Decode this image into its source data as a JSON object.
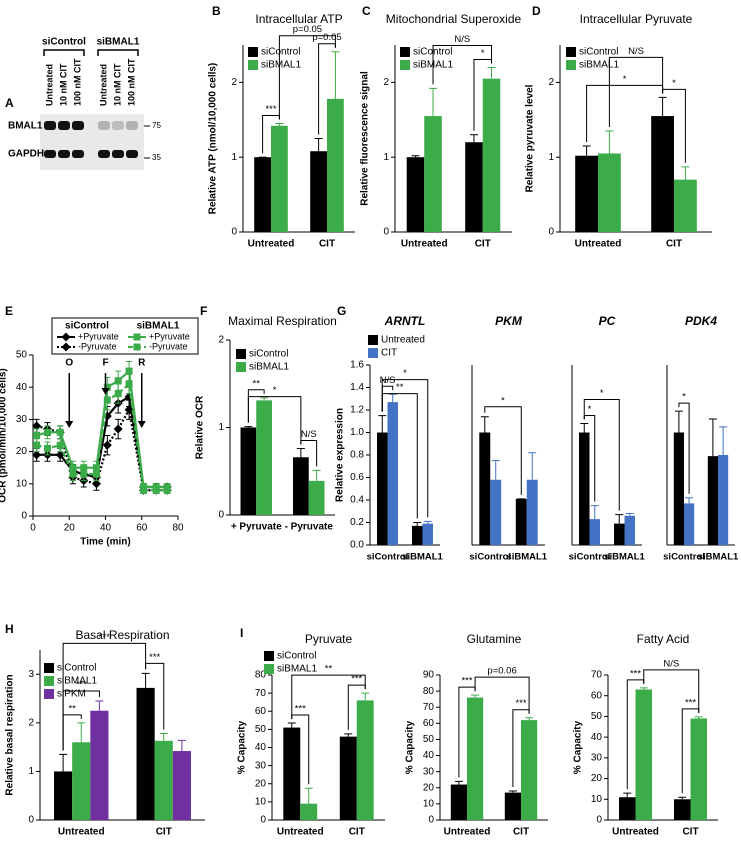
{
  "blot": {
    "panel": "A",
    "groups": [
      "siControl",
      "siBMAL1"
    ],
    "lanes": [
      "Untreated",
      "10 nM CIT",
      "100 nM CIT",
      "Untreated",
      "10 nM CIT",
      "100 nM CIT"
    ],
    "rows": [
      "BMAL1",
      "GAPDH"
    ],
    "markers": [
      "75",
      "35"
    ]
  },
  "chart_data": [
    {
      "type": "bar",
      "panel": "B",
      "title": "Intracellular ATP",
      "ylabel": "Relative ATP (nmol/10,000 cells)",
      "categories": [
        "Untreated",
        "CIT"
      ],
      "series": [
        {
          "name": "siControl",
          "color": "#000000",
          "values": [
            1.0,
            1.08
          ],
          "errors": [
            0.0,
            0.17
          ]
        },
        {
          "name": "siBMAL1",
          "color": "#3cab4a",
          "values": [
            1.42,
            1.78
          ],
          "errors": [
            0.03,
            0.63
          ]
        }
      ],
      "ylim": [
        0,
        2.5
      ],
      "yticks": [
        0,
        1,
        2
      ],
      "annotations": [
        "***",
        "p=0.05",
        "p=0.05"
      ],
      "legend": "upper left"
    },
    {
      "type": "bar",
      "panel": "C",
      "title": "Mitochondrial Superoxide",
      "ylabel": "Relative fluorescence signal",
      "categories": [
        "Untreated",
        "CIT"
      ],
      "series": [
        {
          "name": "siControl",
          "color": "#000000",
          "values": [
            1.0,
            1.2
          ],
          "errors": [
            0.02,
            0.1
          ]
        },
        {
          "name": "siBMAL1",
          "color": "#3cab4a",
          "values": [
            1.55,
            2.05
          ],
          "errors": [
            0.37,
            0.15
          ]
        }
      ],
      "ylim": [
        0,
        2.5
      ],
      "yticks": [
        0,
        1,
        2
      ],
      "annotations": [
        "N/S",
        "*"
      ],
      "legend": "upper left"
    },
    {
      "type": "bar",
      "panel": "D",
      "title": "Intracellular Pyruvate",
      "ylabel": "Relative pyruvate level",
      "categories": [
        "Untreated",
        "CIT"
      ],
      "series": [
        {
          "name": "siControl",
          "color": "#000000",
          "values": [
            1.02,
            1.55
          ],
          "errors": [
            0.13,
            0.25
          ]
        },
        {
          "name": "siBMAL1",
          "color": "#3cab4a",
          "values": [
            1.05,
            0.7
          ],
          "errors": [
            0.3,
            0.17
          ]
        }
      ],
      "ylim": [
        0,
        2.5
      ],
      "yticks": [
        0,
        1,
        2
      ],
      "annotations": [
        "N/S",
        "*",
        "*"
      ],
      "legend": "upper left"
    },
    {
      "type": "line",
      "panel": "E",
      "ylabel": "OCR (pmol/min/10,000 cells)",
      "xlabel": "Time (min)",
      "x": [
        2,
        8,
        15,
        22,
        28,
        35,
        41,
        47,
        53,
        61,
        68,
        74
      ],
      "legend_groups": [
        "siControl",
        "siBMAL1"
      ],
      "series": [
        {
          "name": "+Pyruvate",
          "group": 0,
          "color": "#000000",
          "style": "solid",
          "marker": "diamond",
          "values": [
            19,
            19,
            19,
            14,
            13,
            12,
            31,
            35,
            37,
            9,
            9,
            9
          ],
          "errors": [
            2,
            2,
            2,
            2,
            2,
            2,
            3,
            3,
            3,
            1,
            1,
            1
          ]
        },
        {
          "name": "-Pyruvate",
          "group": 0,
          "color": "#000000",
          "style": "dotted",
          "marker": "diamond",
          "values": [
            28,
            27,
            26,
            12,
            11,
            10,
            22,
            27,
            33,
            8,
            8,
            8
          ],
          "errors": [
            2,
            2,
            2,
            2,
            2,
            2,
            3,
            3,
            3,
            1,
            1,
            1
          ]
        },
        {
          "name": "+Pyruvate",
          "group": 1,
          "color": "#3cab4a",
          "style": "solid",
          "marker": "square",
          "values": [
            25,
            26,
            26,
            15,
            15,
            15,
            40,
            42,
            45,
            9,
            9,
            9
          ],
          "errors": [
            2,
            2,
            2,
            2,
            2,
            2,
            3,
            3,
            3,
            1,
            1,
            1
          ]
        },
        {
          "name": "-Pyruvate",
          "group": 1,
          "color": "#3cab4a",
          "style": "dashed",
          "marker": "square",
          "values": [
            22,
            21,
            22,
            13,
            13,
            13,
            36,
            38,
            41,
            8,
            8,
            8
          ],
          "errors": [
            2,
            2,
            2,
            2,
            2,
            2,
            3,
            3,
            3,
            1,
            1,
            1
          ]
        }
      ],
      "injections": [
        {
          "label": "O",
          "x": 20
        },
        {
          "label": "F",
          "x": 40
        },
        {
          "label": "R",
          "x": 60
        }
      ],
      "xlim": [
        0,
        80
      ],
      "xticks": [
        0,
        20,
        40,
        60,
        80
      ],
      "ylim": [
        0,
        50
      ],
      "yticks": [
        0,
        10,
        20,
        30,
        40,
        50
      ]
    },
    {
      "type": "bar",
      "panel": "F",
      "title": "Maximal Respiration",
      "ylabel": "Relative OCR",
      "categories": [
        "+ Pyruvate",
        "- Pyruvate"
      ],
      "series": [
        {
          "name": "siControl",
          "color": "#000000",
          "values": [
            1.0,
            0.66
          ],
          "errors": [
            0.01,
            0.1
          ]
        },
        {
          "name": "siBMAL1",
          "color": "#3cab4a",
          "values": [
            1.31,
            0.39
          ],
          "errors": [
            0.03,
            0.12
          ]
        }
      ],
      "ylim": [
        0,
        2
      ],
      "yticks": [
        0,
        1,
        2
      ],
      "annotations": [
        "**",
        "N/S",
        "*"
      ],
      "legend": "upper left"
    },
    {
      "type": "bar",
      "panel": "G",
      "title": "ARNTL",
      "ylabel": "Relative expression",
      "categories": [
        "siControl",
        "siBMAL1"
      ],
      "series": [
        {
          "name": "Untreated",
          "color": "#000000",
          "values": [
            1.0,
            0.17
          ],
          "errors": [
            0.15,
            0.03
          ]
        },
        {
          "name": "CIT",
          "color": "#4472c4",
          "values": [
            1.27,
            0.19
          ],
          "errors": [
            0.07,
            0.02
          ]
        }
      ],
      "ylim": [
        0,
        1.6
      ],
      "yticks": [
        {
          "value": 0,
          "label": "0.0"
        },
        0.2,
        0.4,
        0.6,
        0.8,
        {
          "value": 1,
          "label": "1.0"
        },
        1.2,
        1.4,
        1.6
      ],
      "annotations": [
        "N/S",
        "**",
        "*"
      ],
      "legend": "upper left"
    },
    {
      "type": "bar",
      "title": "PKM",
      "categories": [
        "siControl",
        "siBMAL1"
      ],
      "series": [
        {
          "color": "#000000",
          "values": [
            1.0,
            0.41
          ],
          "errors": [
            0.14,
            0.0
          ]
        },
        {
          "color": "#4472c4",
          "values": [
            0.58,
            0.58
          ],
          "errors": [
            0.17,
            0.24
          ]
        }
      ],
      "ylim": [
        0,
        1.6
      ],
      "annotations": [
        "*"
      ]
    },
    {
      "type": "bar",
      "title": "PC",
      "categories": [
        "siControl",
        "siBMAL1"
      ],
      "series": [
        {
          "color": "#000000",
          "values": [
            1.0,
            0.19
          ],
          "errors": [
            0.08,
            0.08
          ]
        },
        {
          "color": "#4472c4",
          "values": [
            0.23,
            0.26
          ],
          "errors": [
            0.12,
            0.02
          ]
        }
      ],
      "ylim": [
        0,
        1.6
      ],
      "annotations": [
        "*",
        "*"
      ]
    },
    {
      "type": "bar",
      "title": "PDK4",
      "categories": [
        "siControl",
        "siBMAL1"
      ],
      "series": [
        {
          "color": "#000000",
          "values": [
            1.0,
            0.79
          ],
          "errors": [
            0.19,
            0.33
          ]
        },
        {
          "color": "#4472c4",
          "values": [
            0.37,
            0.8
          ],
          "errors": [
            0.05,
            0.25
          ]
        }
      ],
      "ylim": [
        0,
        1.6
      ],
      "annotations": [
        "*"
      ]
    },
    {
      "type": "bar",
      "panel": "H",
      "title": "Basal Respiration",
      "ylabel": "Relative basal respiration",
      "categories": [
        "Untreated",
        "CIT"
      ],
      "series": [
        {
          "name": "siControl",
          "color": "#000000",
          "values": [
            1.0,
            2.72
          ],
          "errors": [
            0.35,
            0.3
          ]
        },
        {
          "name": "siBMAL1",
          "color": "#3cab4a",
          "values": [
            1.6,
            1.63
          ],
          "errors": [
            0.4,
            0.15
          ]
        },
        {
          "name": "siPKM",
          "color": "#7030a0",
          "values": [
            2.25,
            1.42
          ],
          "errors": [
            0.2,
            0.22
          ]
        }
      ],
      "ylim": [
        0,
        3.5
      ],
      "yticks": [
        0,
        1,
        2,
        3
      ],
      "annotations": [
        "**",
        "***",
        "***",
        "***"
      ],
      "legend": "upper left"
    },
    {
      "type": "bar",
      "panel": "I",
      "title": "Pyruvate",
      "ylabel": "% Capacity",
      "categories": [
        "Untreated",
        "CIT"
      ],
      "series": [
        {
          "name": "siControl",
          "color": "#000000",
          "values": [
            51,
            46
          ],
          "errors": [
            2.5,
            1.5
          ]
        },
        {
          "name": "siBMAL1",
          "color": "#3cab4a",
          "values": [
            9,
            66
          ],
          "errors": [
            8.5,
            4
          ]
        }
      ],
      "ylim": [
        0,
        80
      ],
      "yticks": [
        0,
        10,
        20,
        30,
        40,
        50,
        60,
        70,
        80
      ],
      "annotations": [
        "***",
        "***",
        "**"
      ],
      "legend": "upper left"
    },
    {
      "type": "bar",
      "title": "Glutamine",
      "ylabel": "% Capacity",
      "categories": [
        "Untreated",
        "CIT"
      ],
      "series": [
        {
          "color": "#000000",
          "values": [
            22,
            17
          ],
          "errors": [
            2,
            1
          ]
        },
        {
          "color": "#3cab4a",
          "values": [
            76,
            62
          ],
          "errors": [
            1.5,
            1.5
          ]
        }
      ],
      "ylim": [
        0,
        90
      ],
      "yticks": [
        0,
        10,
        20,
        30,
        40,
        50,
        60,
        70,
        80,
        90
      ],
      "annotations": [
        "***",
        "***",
        "p=0.06"
      ]
    },
    {
      "type": "bar",
      "title": "Fatty Acid",
      "ylabel": "% Capacity",
      "categories": [
        "Untreated",
        "CIT"
      ],
      "series": [
        {
          "color": "#000000",
          "values": [
            11,
            10
          ],
          "errors": [
            2,
            1
          ]
        },
        {
          "color": "#3cab4a",
          "values": [
            63,
            49
          ],
          "errors": [
            0.8,
            0.8
          ]
        }
      ],
      "ylim": [
        0,
        70
      ],
      "yticks": [
        0,
        10,
        20,
        30,
        40,
        50,
        60,
        70
      ],
      "annotations": [
        "***",
        "***",
        "N/S"
      ]
    }
  ]
}
